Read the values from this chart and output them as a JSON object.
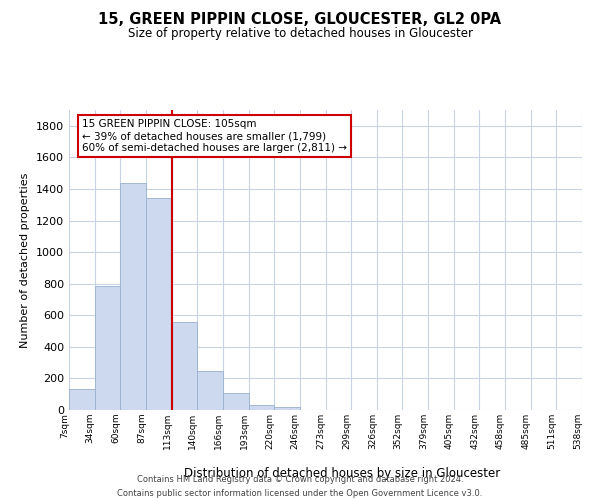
{
  "title": "15, GREEN PIPPIN CLOSE, GLOUCESTER, GL2 0PA",
  "subtitle": "Size of property relative to detached houses in Gloucester",
  "xlabel": "Distribution of detached houses by size in Gloucester",
  "ylabel": "Number of detached properties",
  "bin_labels": [
    "7sqm",
    "34sqm",
    "60sqm",
    "87sqm",
    "113sqm",
    "140sqm",
    "166sqm",
    "193sqm",
    "220sqm",
    "246sqm",
    "273sqm",
    "299sqm",
    "326sqm",
    "352sqm",
    "379sqm",
    "405sqm",
    "432sqm",
    "458sqm",
    "485sqm",
    "511sqm",
    "538sqm"
  ],
  "bar_values": [
    130,
    785,
    1440,
    1340,
    555,
    250,
    108,
    30,
    22,
    0,
    0,
    0,
    0,
    0,
    0,
    0,
    0,
    0,
    0,
    0
  ],
  "bar_color": "#ccd9ee",
  "bar_edge_color": "#9ab0cc",
  "vline_x": 4,
  "vline_color": "#cc0000",
  "ylim": [
    0,
    1900
  ],
  "yticks": [
    0,
    200,
    400,
    600,
    800,
    1000,
    1200,
    1400,
    1600,
    1800
  ],
  "annotation_line1": "15 GREEN PIPPIN CLOSE: 105sqm",
  "annotation_line2": "← 39% of detached houses are smaller (1,799)",
  "annotation_line3": "60% of semi-detached houses are larger (2,811) →",
  "annotation_box_color": "#ffffff",
  "annotation_box_edge": "#cc0000",
  "footer_line1": "Contains HM Land Registry data © Crown copyright and database right 2024.",
  "footer_line2": "Contains public sector information licensed under the Open Government Licence v3.0.",
  "background_color": "#ffffff",
  "grid_color": "#c8d4e4"
}
